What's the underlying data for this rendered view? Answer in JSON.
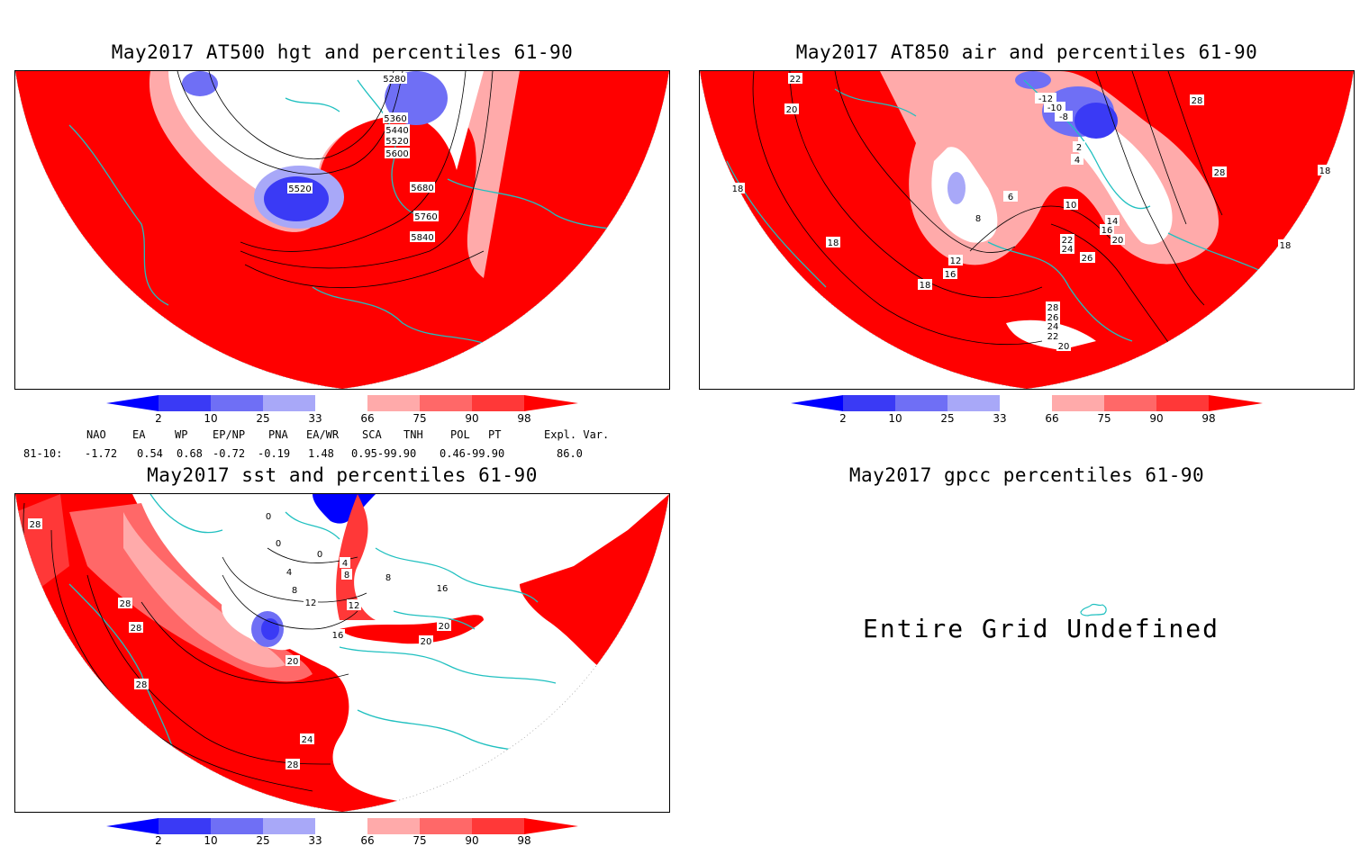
{
  "panels": [
    {
      "title": "May2017 AT500 hgt and percentiles 61-90",
      "contour_labels": [
        "5280",
        "5360",
        "5440",
        "5520",
        "5600",
        "5520",
        "5680",
        "5760",
        "5840"
      ]
    },
    {
      "title": "May2017 AT850 air and percentiles 61-90",
      "contour_labels": [
        "22",
        "20",
        "18",
        "18",
        "16",
        "18",
        "12",
        "8",
        "6",
        "10",
        "14",
        "16",
        "20",
        "22",
        "24",
        "26",
        "28",
        "26",
        "24",
        "22",
        "20",
        "28",
        "28",
        "18",
        "18",
        "26",
        "-12",
        "-10",
        "-8",
        "4",
        "2"
      ]
    },
    {
      "title": "May2017 sst and percentiles 61-90",
      "contour_labels": [
        "28",
        "28",
        "28",
        "28",
        "0",
        "0",
        "0",
        "4",
        "4",
        "8",
        "8",
        "8",
        "12",
        "12",
        "16",
        "16",
        "20",
        "20",
        "20",
        "24",
        "28"
      ]
    },
    {
      "title": "May2017 gpcc percentiles 61-90",
      "message": "Entire Grid Undefined"
    }
  ],
  "colorbar": {
    "ticks": [
      "2",
      "10",
      "25",
      "33",
      "66",
      "75",
      "90",
      "98"
    ],
    "colors": [
      "#0000ff",
      "#3a3af5",
      "#6f6ff5",
      "#a8a8f8",
      "#ffffff",
      "#ffaaaa",
      "#ff6868",
      "#ff3838",
      "#ff0000"
    ]
  },
  "indices": {
    "headers": [
      "NAO",
      "EA",
      "WP",
      "EP/NP",
      "PNA",
      "EA/WR",
      "SCA",
      "TNH",
      "POL",
      "PT",
      "Expl. Var."
    ],
    "row_label": "81-10:",
    "values": [
      "-1.72",
      "0.54",
      "0.68",
      "-0.72",
      "-0.19",
      "1.48",
      "0.95-99.90",
      "0.46-99.90",
      "86.0"
    ]
  }
}
